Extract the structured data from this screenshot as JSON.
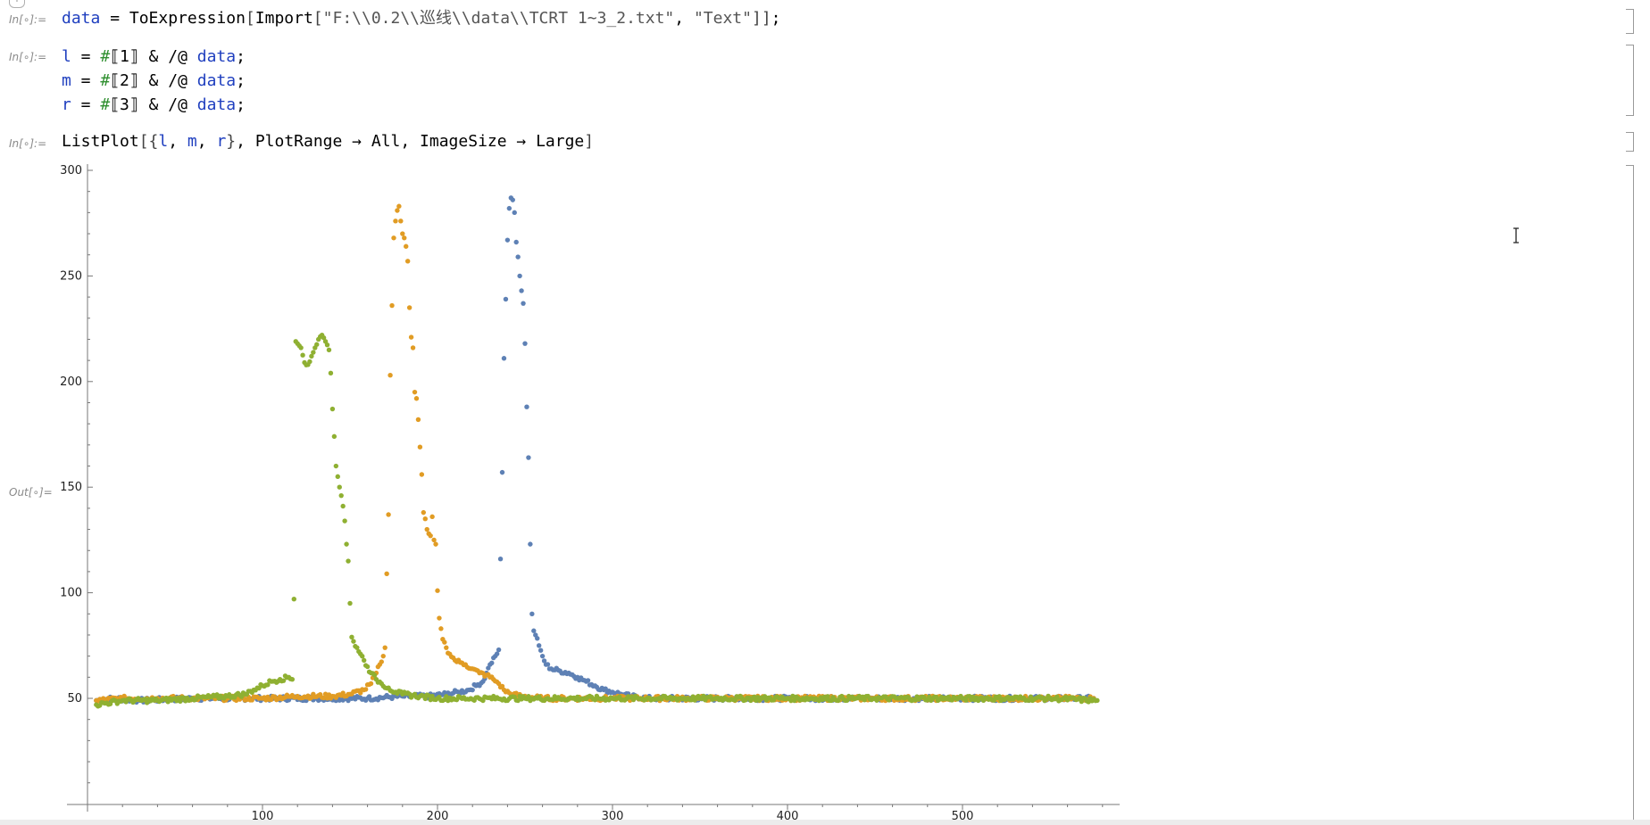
{
  "notebook": {
    "new_cell_tab": "+",
    "cells": [
      {
        "label": "In[∘]:=",
        "tokens": [
          {
            "t": "data",
            "c": "var"
          },
          {
            "t": " = ",
            "c": "kw"
          },
          {
            "t": "ToExpression",
            "c": "kw"
          },
          {
            "t": "[",
            "c": "bracket"
          },
          {
            "t": "Import",
            "c": "kw"
          },
          {
            "t": "[",
            "c": "bracket"
          },
          {
            "t": "\"F:\\\\0.2\\\\巡线\\\\data\\\\TCRT 1~3_2.txt\"",
            "c": "str"
          },
          {
            "t": ", ",
            "c": "kw"
          },
          {
            "t": "\"Text\"",
            "c": "str"
          },
          {
            "t": "]]",
            "c": "bracket"
          },
          {
            "t": ";",
            "c": "kw"
          }
        ]
      }
    ],
    "cell2_label": "In[∘]:=",
    "cell2_lines": [
      [
        {
          "t": "l",
          "c": "var"
        },
        {
          "t": " = ",
          "c": "kw"
        },
        {
          "t": "#",
          "c": "slot"
        },
        {
          "t": "⟦1⟧",
          "c": "kw"
        },
        {
          "t": " & /@ ",
          "c": "kw"
        },
        {
          "t": "data",
          "c": "var"
        },
        {
          "t": ";",
          "c": "kw"
        }
      ],
      [
        {
          "t": "m",
          "c": "var"
        },
        {
          "t": " = ",
          "c": "kw"
        },
        {
          "t": "#",
          "c": "slot"
        },
        {
          "t": "⟦2⟧",
          "c": "kw"
        },
        {
          "t": " & /@ ",
          "c": "kw"
        },
        {
          "t": "data",
          "c": "var"
        },
        {
          "t": ";",
          "c": "kw"
        }
      ],
      [
        {
          "t": "r",
          "c": "var"
        },
        {
          "t": " = ",
          "c": "kw"
        },
        {
          "t": "#",
          "c": "slot"
        },
        {
          "t": "⟦3⟧",
          "c": "kw"
        },
        {
          "t": " & /@ ",
          "c": "kw"
        },
        {
          "t": "data",
          "c": "var"
        },
        {
          "t": ";",
          "c": "kw"
        }
      ]
    ],
    "cell3_label": "In[∘]:=",
    "cell3_tokens": [
      {
        "t": "ListPlot",
        "c": "kw"
      },
      {
        "t": "[{",
        "c": "bracket"
      },
      {
        "t": "l",
        "c": "var"
      },
      {
        "t": ", ",
        "c": "kw"
      },
      {
        "t": "m",
        "c": "var"
      },
      {
        "t": ", ",
        "c": "kw"
      },
      {
        "t": "r",
        "c": "var"
      },
      {
        "t": "}",
        "c": "bracket"
      },
      {
        "t": ", PlotRange → All, ImageSize → Large",
        "c": "kw"
      },
      {
        "t": "]",
        "c": "bracket"
      }
    ],
    "out_label": "Out[∘]="
  },
  "chart_data": {
    "type": "scatter",
    "title": "",
    "xlabel": "",
    "ylabel": "",
    "xlim": [
      0,
      585
    ],
    "ylim": [
      0,
      303
    ],
    "x_ticks": [
      100,
      200,
      300,
      400,
      500
    ],
    "y_ticks": [
      50,
      100,
      150,
      200,
      250,
      300
    ],
    "grid": false,
    "legend": "none",
    "series": [
      {
        "color": "#5e81b5",
        "points": [
          [
            5,
            49
          ],
          [
            15,
            50
          ],
          [
            30,
            49
          ],
          [
            60,
            50
          ],
          [
            100,
            50
          ],
          [
            130,
            50
          ],
          [
            160,
            50
          ],
          [
            180,
            51
          ],
          [
            195,
            51
          ],
          [
            205,
            52
          ],
          [
            212,
            53
          ],
          [
            218,
            54
          ],
          [
            222,
            56
          ],
          [
            226,
            58
          ],
          [
            228,
            62
          ],
          [
            230,
            66
          ],
          [
            233,
            70
          ],
          [
            235,
            73
          ],
          [
            236,
            116
          ],
          [
            237,
            157
          ],
          [
            238,
            211
          ],
          [
            239,
            239
          ],
          [
            240,
            267
          ],
          [
            241,
            282
          ],
          [
            242,
            287
          ],
          [
            243,
            286
          ],
          [
            244,
            280
          ],
          [
            245,
            266
          ],
          [
            246,
            259
          ],
          [
            247,
            250
          ],
          [
            248,
            243
          ],
          [
            249,
            237
          ],
          [
            250,
            218
          ],
          [
            251,
            188
          ],
          [
            252,
            164
          ],
          [
            253,
            123
          ],
          [
            254,
            90
          ],
          [
            255,
            82
          ],
          [
            256,
            80
          ],
          [
            258,
            75
          ],
          [
            260,
            70
          ],
          [
            262,
            66
          ],
          [
            265,
            64
          ],
          [
            270,
            63
          ],
          [
            275,
            62
          ],
          [
            280,
            60
          ],
          [
            285,
            58
          ],
          [
            290,
            56
          ],
          [
            295,
            54
          ],
          [
            300,
            53
          ],
          [
            305,
            52
          ],
          [
            310,
            51
          ],
          [
            320,
            50
          ],
          [
            350,
            50
          ],
          [
            400,
            50
          ],
          [
            450,
            50
          ],
          [
            500,
            50
          ],
          [
            550,
            50
          ],
          [
            575,
            50
          ]
        ]
      },
      {
        "color": "#e19c24",
        "points": [
          [
            5,
            49
          ],
          [
            20,
            50
          ],
          [
            40,
            50
          ],
          [
            60,
            50
          ],
          [
            80,
            50
          ],
          [
            100,
            50
          ],
          [
            120,
            51
          ],
          [
            140,
            51
          ],
          [
            150,
            52
          ],
          [
            158,
            54
          ],
          [
            162,
            57
          ],
          [
            165,
            62
          ],
          [
            167,
            66
          ],
          [
            169,
            70
          ],
          [
            170,
            74
          ],
          [
            171,
            109
          ],
          [
            172,
            137
          ],
          [
            173,
            203
          ],
          [
            174,
            236
          ],
          [
            175,
            268
          ],
          [
            176,
            276
          ],
          [
            177,
            281
          ],
          [
            178,
            283
          ],
          [
            179,
            276
          ],
          [
            180,
            270
          ],
          [
            181,
            268
          ],
          [
            182,
            264
          ],
          [
            183,
            257
          ],
          [
            184,
            235
          ],
          [
            185,
            221
          ],
          [
            186,
            216
          ],
          [
            187,
            195
          ],
          [
            188,
            192
          ],
          [
            189,
            182
          ],
          [
            190,
            169
          ],
          [
            191,
            156
          ],
          [
            192,
            138
          ],
          [
            193,
            135
          ],
          [
            194,
            130
          ],
          [
            195,
            128
          ],
          [
            196,
            127
          ],
          [
            197,
            136
          ],
          [
            198,
            125
          ],
          [
            199,
            123
          ],
          [
            200,
            101
          ],
          [
            201,
            88
          ],
          [
            202,
            83
          ],
          [
            203,
            78
          ],
          [
            205,
            74
          ],
          [
            207,
            71
          ],
          [
            210,
            68
          ],
          [
            213,
            67
          ],
          [
            216,
            66
          ],
          [
            220,
            64
          ],
          [
            224,
            62
          ],
          [
            228,
            61
          ],
          [
            232,
            59
          ],
          [
            235,
            57
          ],
          [
            238,
            54
          ],
          [
            242,
            52
          ],
          [
            248,
            51
          ],
          [
            260,
            50
          ],
          [
            300,
            50
          ],
          [
            350,
            50
          ],
          [
            400,
            50
          ],
          [
            450,
            50
          ],
          [
            500,
            50
          ],
          [
            550,
            50
          ],
          [
            575,
            50
          ]
        ]
      },
      {
        "color": "#8fb032",
        "points": [
          [
            5,
            47
          ],
          [
            20,
            49
          ],
          [
            40,
            49
          ],
          [
            60,
            50
          ],
          [
            80,
            51
          ],
          [
            90,
            52
          ],
          [
            95,
            54
          ],
          [
            100,
            56
          ],
          [
            105,
            58
          ],
          [
            110,
            59
          ],
          [
            115,
            60
          ],
          [
            117,
            59
          ],
          [
            118,
            97
          ],
          [
            119,
            219
          ],
          [
            120,
            218
          ],
          [
            121,
            217
          ],
          [
            122,
            216
          ],
          [
            124,
            209
          ],
          [
            126,
            208
          ],
          [
            128,
            212
          ],
          [
            130,
            216
          ],
          [
            132,
            220
          ],
          [
            134,
            222
          ],
          [
            136,
            219
          ],
          [
            138,
            215
          ],
          [
            139,
            204
          ],
          [
            140,
            187
          ],
          [
            141,
            174
          ],
          [
            142,
            160
          ],
          [
            143,
            155
          ],
          [
            144,
            150
          ],
          [
            145,
            146
          ],
          [
            146,
            141
          ],
          [
            147,
            134
          ],
          [
            148,
            123
          ],
          [
            149,
            115
          ],
          [
            150,
            95
          ],
          [
            151,
            79
          ],
          [
            152,
            77
          ],
          [
            154,
            74
          ],
          [
            156,
            71
          ],
          [
            158,
            68
          ],
          [
            160,
            65
          ],
          [
            162,
            62
          ],
          [
            165,
            59
          ],
          [
            168,
            57
          ],
          [
            172,
            55
          ],
          [
            176,
            53
          ],
          [
            180,
            52
          ],
          [
            190,
            51
          ],
          [
            200,
            50
          ],
          [
            250,
            50
          ],
          [
            300,
            50
          ],
          [
            350,
            50
          ],
          [
            400,
            50
          ],
          [
            450,
            50
          ],
          [
            500,
            50
          ],
          [
            550,
            50
          ],
          [
            577,
            49
          ]
        ]
      }
    ]
  }
}
